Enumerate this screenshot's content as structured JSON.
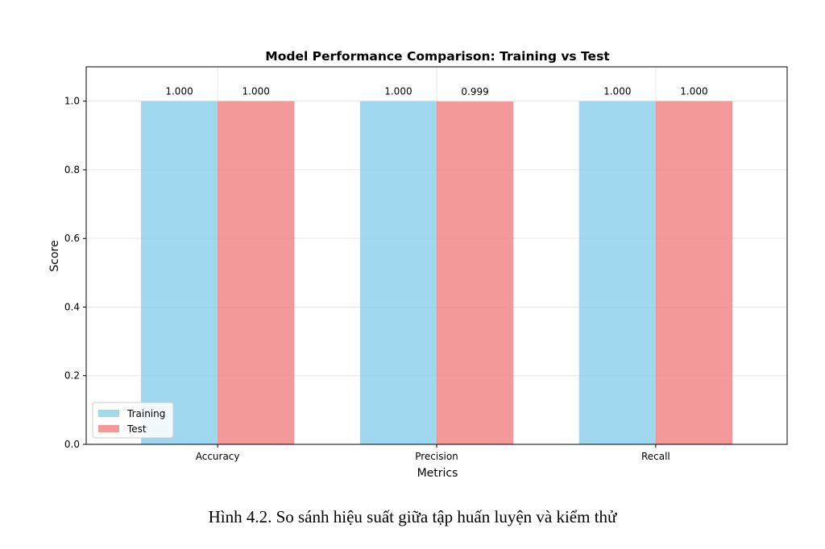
{
  "chart_data": {
    "type": "bar",
    "title": "Model Performance Comparison: Training vs Test",
    "xlabel": "Metrics",
    "ylabel": "Score",
    "categories": [
      "Accuracy",
      "Precision",
      "Recall"
    ],
    "series": [
      {
        "name": "Training",
        "values": [
          1.0,
          1.0,
          1.0
        ],
        "labels": [
          "1.000",
          "1.000",
          "1.000"
        ],
        "color": "#87CEEB"
      },
      {
        "name": "Test",
        "values": [
          1.0,
          0.999,
          1.0
        ],
        "labels": [
          "1.000",
          "0.999",
          "1.000"
        ],
        "color": "#F08080"
      }
    ],
    "ylim": [
      0,
      1.1
    ],
    "yticks": [
      0.0,
      0.2,
      0.4,
      0.6,
      0.8,
      1.0
    ],
    "ytick_labels": [
      "0.0",
      "0.2",
      "0.4",
      "0.6",
      "0.8",
      "1.0"
    ],
    "grid": true,
    "legend_position": "bottom-left"
  },
  "caption": "Hình 4.2. So sánh hiệu suất giữa tập huấn luyện và kiểm thử"
}
